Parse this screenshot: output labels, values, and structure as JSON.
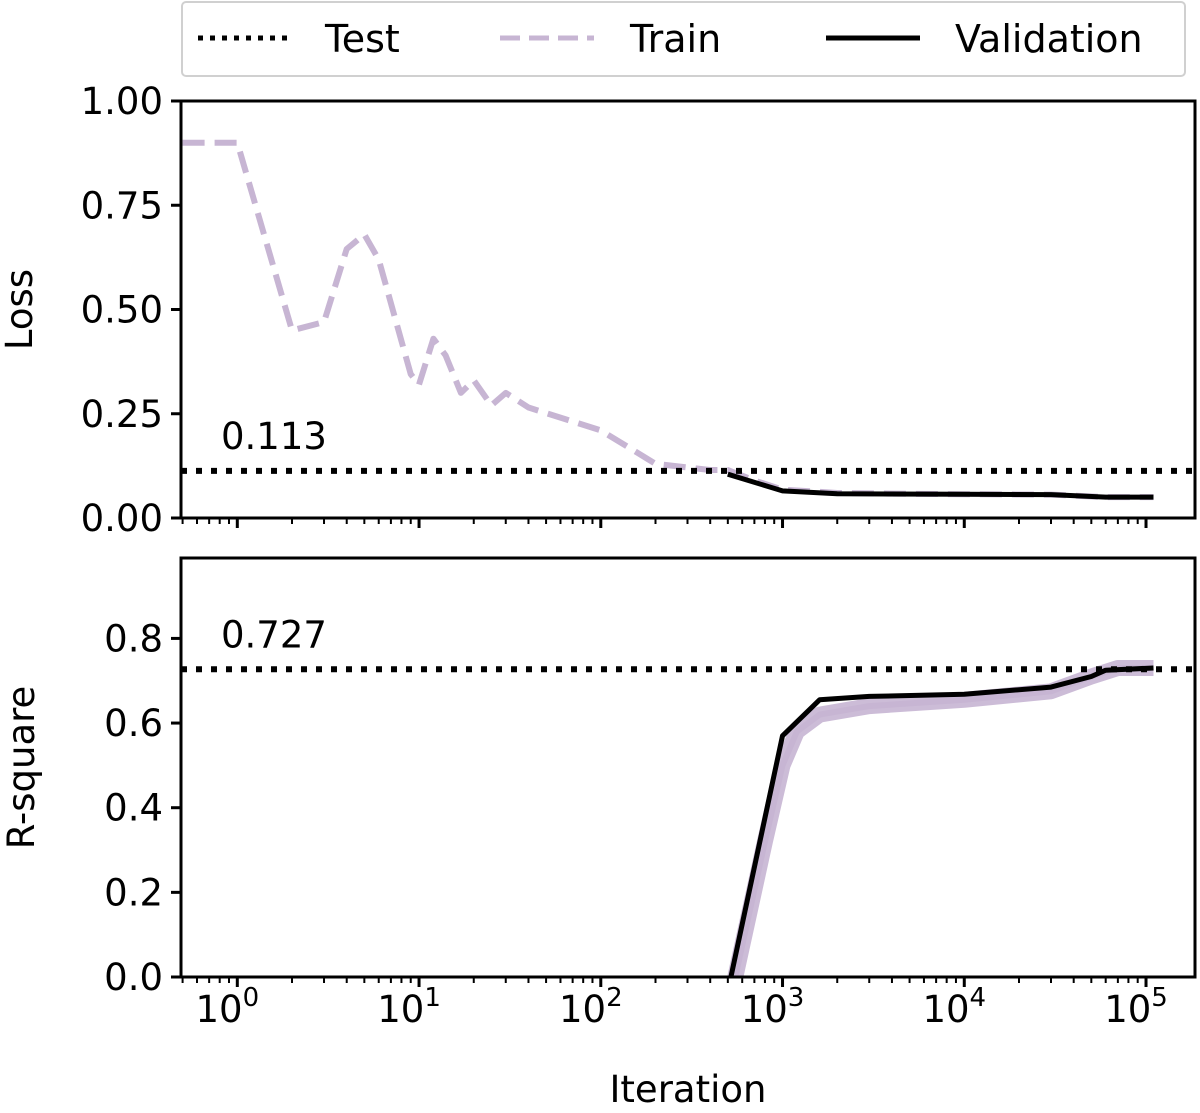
{
  "chart_data": [
    {
      "type": "line",
      "ylabel": "Loss",
      "xscale": "log",
      "xlim": [
        0.49,
        186000
      ],
      "ylim": [
        0,
        1.0
      ],
      "yticks": [
        "0.00",
        "0.25",
        "0.50",
        "0.75",
        "1.00"
      ],
      "ytick_values": [
        0,
        0.25,
        0.5,
        0.75,
        1.0
      ],
      "annotation": "0.113",
      "series": [
        {
          "name": "Test",
          "style": "dotted",
          "color": "#000000",
          "hline": 0.113
        },
        {
          "name": "Train",
          "style": "dashed",
          "color": "#c7b5d3",
          "x": [
            0.5,
            1,
            2,
            3,
            4,
            5,
            6,
            9,
            10,
            12,
            14,
            17,
            20,
            25,
            30,
            40,
            100,
            200,
            400,
            500,
            700,
            1000,
            2000,
            5000,
            10000,
            30000,
            60000,
            110000
          ],
          "y": [
            0.9,
            0.9,
            0.45,
            0.47,
            0.645,
            0.68,
            0.62,
            0.345,
            0.32,
            0.43,
            0.39,
            0.3,
            0.33,
            0.27,
            0.3,
            0.265,
            0.21,
            0.13,
            0.115,
            0.115,
            0.09,
            0.068,
            0.06,
            0.058,
            0.057,
            0.056,
            0.05,
            0.05
          ]
        },
        {
          "name": "Validation",
          "style": "solid",
          "color": "#000000",
          "x": [
            500,
            1000,
            2000,
            10000,
            30000,
            60000,
            110000
          ],
          "y": [
            0.105,
            0.065,
            0.058,
            0.057,
            0.056,
            0.05,
            0.05
          ]
        }
      ]
    },
    {
      "type": "line",
      "ylabel": "R-square",
      "xlabel": "Iteration",
      "xscale": "log",
      "xlim": [
        0.49,
        186000
      ],
      "ylim": [
        0,
        0.99
      ],
      "yticks": [
        "0.0",
        "0.2",
        "0.4",
        "0.6",
        "0.8"
      ],
      "ytick_values": [
        0,
        0.2,
        0.4,
        0.6,
        0.8
      ],
      "xticks": [
        "0",
        "1",
        "2",
        "3",
        "4",
        "5"
      ],
      "xtick_values": [
        1,
        10,
        100,
        1000,
        10000,
        100000
      ],
      "xtick_base": "10",
      "annotation": "0.727",
      "series": [
        {
          "name": "Test",
          "style": "dotted",
          "color": "#000000",
          "hline": 0.727
        },
        {
          "name": "Train",
          "style": "dashed",
          "color": "#c7b5d3",
          "x": [
            550,
            800,
            1000,
            1200,
            1600,
            3000,
            10000,
            30000,
            50000,
            70000,
            110000
          ],
          "y": [
            0.0,
            0.32,
            0.5,
            0.58,
            0.62,
            0.64,
            0.655,
            0.675,
            0.71,
            0.73,
            0.73
          ]
        },
        {
          "name": "Validation",
          "style": "solid",
          "color": "#000000",
          "x": [
            520,
            1000,
            1600,
            3000,
            10000,
            30000,
            50000,
            60000,
            110000
          ],
          "y": [
            0.0,
            0.57,
            0.655,
            0.663,
            0.668,
            0.685,
            0.71,
            0.725,
            0.73
          ]
        }
      ]
    }
  ],
  "legend": {
    "placement": "top",
    "entries": [
      "Test",
      "Train",
      "Validation"
    ]
  }
}
